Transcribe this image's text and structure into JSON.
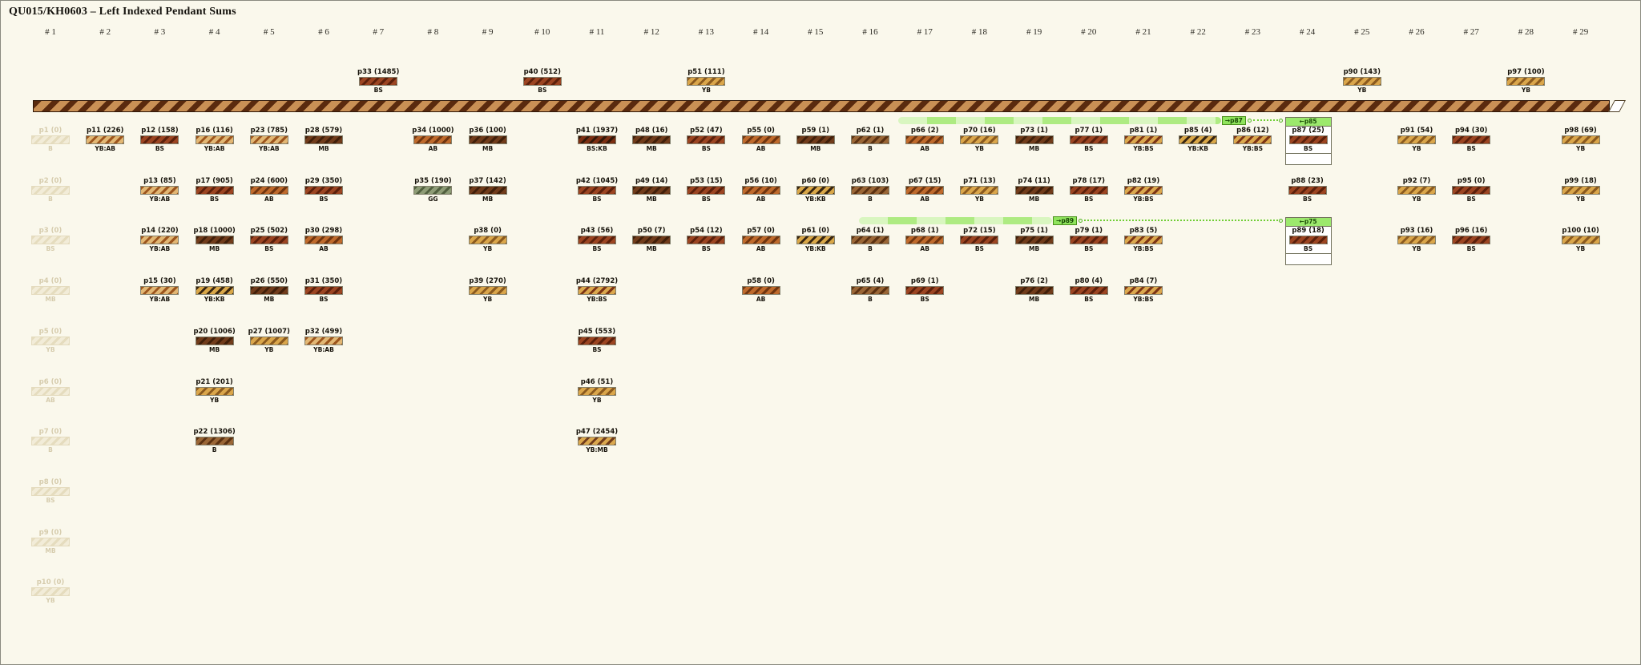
{
  "title": "QU015/KH0603 – Left Indexed Pendant Sums",
  "columns": [
    "# 1",
    "# 2",
    "# 3",
    "# 4",
    "# 5",
    "# 6",
    "# 7",
    "# 8",
    "# 9",
    "# 10",
    "# 11",
    "# 12",
    "# 13",
    "# 14",
    "# 15",
    "# 16",
    "# 17",
    "# 18",
    "# 19",
    "# 20",
    "# 21",
    "# 22",
    "# 23",
    "# 24",
    "# 25",
    "# 26",
    "# 27",
    "# 28",
    "# 29"
  ],
  "colors": {
    "background": "#faf8ec",
    "cord_light": "#c99055",
    "cord_dark": "#5a2a0e",
    "band_light": "#d9f6c0",
    "band_dark": "#aeeb82",
    "badge_green": "#8fe45c",
    "box_header_green": "#9ce96d",
    "dotted_green": "#6fce35",
    "ghost": [
      "#f2ecd8",
      "#e5dcbe"
    ],
    "codes": {
      "B": [
        "#9a6636",
        "#5b3111"
      ],
      "BS": [
        "#9c4522",
        "#5c200b"
      ],
      "MB": [
        "#713c1b",
        "#411f09"
      ],
      "AB": [
        "#bf6a2c",
        "#70350f"
      ],
      "YB": [
        "#daa64b",
        "#8b5a1e"
      ],
      "GG": [
        "#8e9c76",
        "#51603f"
      ],
      "YB:AB": [
        "#e2b774",
        "#9c551d"
      ],
      "YB:BS": [
        "#dba84e",
        "#7c3414"
      ],
      "YB:KB": [
        "#d9a748",
        "#382510"
      ],
      "YB:MB": [
        "#dba84e",
        "#713c1b"
      ],
      "BS:KB": [
        "#7c2f12",
        "#331708"
      ]
    }
  },
  "pendants": [
    {
      "id": "p33",
      "value": 1485,
      "col": 7,
      "row": 0,
      "code": "BS"
    },
    {
      "id": "p40",
      "value": 512,
      "col": 10,
      "row": 0,
      "code": "BS"
    },
    {
      "id": "p51",
      "value": 111,
      "col": 13,
      "row": 0,
      "code": "YB"
    },
    {
      "id": "p90",
      "value": 143,
      "col": 25,
      "row": 0,
      "code": "YB"
    },
    {
      "id": "p97",
      "value": 100,
      "col": 28,
      "row": 0,
      "code": "YB"
    },
    {
      "id": "p1",
      "value": 0,
      "col": 1,
      "row": 1,
      "code": "B",
      "ghost": true
    },
    {
      "id": "p2",
      "value": 0,
      "col": 1,
      "row": 2,
      "code": "B",
      "ghost": true
    },
    {
      "id": "p3",
      "value": 0,
      "col": 1,
      "row": 3,
      "code": "BS",
      "ghost": true
    },
    {
      "id": "p4",
      "value": 0,
      "col": 1,
      "row": 4,
      "code": "MB",
      "ghost": true
    },
    {
      "id": "p5",
      "value": 0,
      "col": 1,
      "row": 5,
      "code": "YB",
      "ghost": true
    },
    {
      "id": "p6",
      "value": 0,
      "col": 1,
      "row": 6,
      "code": "AB",
      "ghost": true
    },
    {
      "id": "p7",
      "value": 0,
      "col": 1,
      "row": 7,
      "code": "B",
      "ghost": true
    },
    {
      "id": "p8",
      "value": 0,
      "col": 1,
      "row": 8,
      "code": "BS",
      "ghost": true
    },
    {
      "id": "p9",
      "value": 0,
      "col": 1,
      "row": 9,
      "code": "MB",
      "ghost": true
    },
    {
      "id": "p10",
      "value": 0,
      "col": 1,
      "row": 10,
      "code": "YB",
      "ghost": true
    },
    {
      "id": "p11",
      "value": 226,
      "col": 2,
      "row": 1,
      "code": "YB:AB"
    },
    {
      "id": "p12",
      "value": 158,
      "col": 3,
      "row": 1,
      "code": "BS"
    },
    {
      "id": "p16",
      "value": 116,
      "col": 4,
      "row": 1,
      "code": "YB:AB"
    },
    {
      "id": "p23",
      "value": 785,
      "col": 5,
      "row": 1,
      "code": "YB:AB"
    },
    {
      "id": "p28",
      "value": 579,
      "col": 6,
      "row": 1,
      "code": "MB"
    },
    {
      "id": "p34",
      "value": 1000,
      "col": 8,
      "row": 1,
      "code": "AB"
    },
    {
      "id": "p36",
      "value": 100,
      "col": 9,
      "row": 1,
      "code": "MB"
    },
    {
      "id": "p41",
      "value": 1937,
      "col": 11,
      "row": 1,
      "code": "BS:KB"
    },
    {
      "id": "p48",
      "value": 16,
      "col": 12,
      "row": 1,
      "code": "MB"
    },
    {
      "id": "p52",
      "value": 47,
      "col": 13,
      "row": 1,
      "code": "BS"
    },
    {
      "id": "p55",
      "value": 0,
      "col": 14,
      "row": 1,
      "code": "AB"
    },
    {
      "id": "p59",
      "value": 1,
      "col": 15,
      "row": 1,
      "code": "MB"
    },
    {
      "id": "p62",
      "value": 1,
      "col": 16,
      "row": 1,
      "code": "B"
    },
    {
      "id": "p66",
      "value": 2,
      "col": 17,
      "row": 1,
      "code": "AB"
    },
    {
      "id": "p70",
      "value": 16,
      "col": 18,
      "row": 1,
      "code": "YB"
    },
    {
      "id": "p73",
      "value": 1,
      "col": 19,
      "row": 1,
      "code": "MB"
    },
    {
      "id": "p77",
      "value": 1,
      "col": 20,
      "row": 1,
      "code": "BS"
    },
    {
      "id": "p81",
      "value": 1,
      "col": 21,
      "row": 1,
      "code": "YB:BS"
    },
    {
      "id": "p85",
      "value": 4,
      "col": 22,
      "row": 1,
      "code": "YB:KB"
    },
    {
      "id": "p86",
      "value": 12,
      "col": 23,
      "row": 1,
      "code": "YB:BS"
    },
    {
      "id": "p87",
      "value": 25,
      "col": 24,
      "row": 1,
      "code": "BS",
      "boxed": true,
      "box_tag": "←p85"
    },
    {
      "id": "p91",
      "value": 54,
      "col": 26,
      "row": 1,
      "code": "YB"
    },
    {
      "id": "p94",
      "value": 30,
      "col": 27,
      "row": 1,
      "code": "BS"
    },
    {
      "id": "p98",
      "value": 69,
      "col": 29,
      "row": 1,
      "code": "YB"
    },
    {
      "id": "p13",
      "value": 85,
      "col": 3,
      "row": 2,
      "code": "YB:AB"
    },
    {
      "id": "p17",
      "value": 905,
      "col": 4,
      "row": 2,
      "code": "BS"
    },
    {
      "id": "p24",
      "value": 600,
      "col": 5,
      "row": 2,
      "code": "AB"
    },
    {
      "id": "p29",
      "value": 350,
      "col": 6,
      "row": 2,
      "code": "BS"
    },
    {
      "id": "p35",
      "value": 190,
      "col": 8,
      "row": 2,
      "code": "GG"
    },
    {
      "id": "p37",
      "value": 142,
      "col": 9,
      "row": 2,
      "code": "MB"
    },
    {
      "id": "p42",
      "value": 1045,
      "col": 11,
      "row": 2,
      "code": "BS"
    },
    {
      "id": "p49",
      "value": 14,
      "col": 12,
      "row": 2,
      "code": "MB"
    },
    {
      "id": "p53",
      "value": 15,
      "col": 13,
      "row": 2,
      "code": "BS"
    },
    {
      "id": "p56",
      "value": 10,
      "col": 14,
      "row": 2,
      "code": "AB"
    },
    {
      "id": "p60",
      "value": 0,
      "col": 15,
      "row": 2,
      "code": "YB:KB"
    },
    {
      "id": "p63",
      "value": 103,
      "col": 16,
      "row": 2,
      "code": "B"
    },
    {
      "id": "p67",
      "value": 15,
      "col": 17,
      "row": 2,
      "code": "AB"
    },
    {
      "id": "p71",
      "value": 13,
      "col": 18,
      "row": 2,
      "code": "YB"
    },
    {
      "id": "p74",
      "value": 11,
      "col": 19,
      "row": 2,
      "code": "MB"
    },
    {
      "id": "p78",
      "value": 17,
      "col": 20,
      "row": 2,
      "code": "BS"
    },
    {
      "id": "p82",
      "value": 19,
      "col": 21,
      "row": 2,
      "code": "YB:BS"
    },
    {
      "id": "p88",
      "value": 23,
      "col": 24,
      "row": 2,
      "code": "BS"
    },
    {
      "id": "p92",
      "value": 7,
      "col": 26,
      "row": 2,
      "code": "YB"
    },
    {
      "id": "p95",
      "value": 0,
      "col": 27,
      "row": 2,
      "code": "BS"
    },
    {
      "id": "p99",
      "value": 18,
      "col": 29,
      "row": 2,
      "code": "YB"
    },
    {
      "id": "p14",
      "value": 220,
      "col": 3,
      "row": 3,
      "code": "YB:AB"
    },
    {
      "id": "p18",
      "value": 1000,
      "col": 4,
      "row": 3,
      "code": "MB"
    },
    {
      "id": "p25",
      "value": 502,
      "col": 5,
      "row": 3,
      "code": "BS"
    },
    {
      "id": "p30",
      "value": 298,
      "col": 6,
      "row": 3,
      "code": "AB"
    },
    {
      "id": "p38",
      "value": 0,
      "col": 9,
      "row": 3,
      "code": "YB"
    },
    {
      "id": "p43",
      "value": 56,
      "col": 11,
      "row": 3,
      "code": "BS"
    },
    {
      "id": "p50",
      "value": 7,
      "col": 12,
      "row": 3,
      "code": "MB"
    },
    {
      "id": "p54",
      "value": 12,
      "col": 13,
      "row": 3,
      "code": "BS"
    },
    {
      "id": "p57",
      "value": 0,
      "col": 14,
      "row": 3,
      "code": "AB"
    },
    {
      "id": "p61",
      "value": 0,
      "col": 15,
      "row": 3,
      "code": "YB:KB"
    },
    {
      "id": "p64",
      "value": 1,
      "col": 16,
      "row": 3,
      "code": "B"
    },
    {
      "id": "p68",
      "value": 1,
      "col": 17,
      "row": 3,
      "code": "AB"
    },
    {
      "id": "p72",
      "value": 15,
      "col": 18,
      "row": 3,
      "code": "BS"
    },
    {
      "id": "p75",
      "value": 1,
      "col": 19,
      "row": 3,
      "code": "MB"
    },
    {
      "id": "p79",
      "value": 1,
      "col": 20,
      "row": 3,
      "code": "BS"
    },
    {
      "id": "p83",
      "value": 5,
      "col": 21,
      "row": 3,
      "code": "YB:BS"
    },
    {
      "id": "p89",
      "value": 18,
      "col": 24,
      "row": 3,
      "code": "BS",
      "boxed": true,
      "box_tag": "←p75"
    },
    {
      "id": "p93",
      "value": 16,
      "col": 26,
      "row": 3,
      "code": "YB"
    },
    {
      "id": "p96",
      "value": 16,
      "col": 27,
      "row": 3,
      "code": "BS"
    },
    {
      "id": "p100",
      "value": 10,
      "col": 29,
      "row": 3,
      "code": "YB"
    },
    {
      "id": "p15",
      "value": 30,
      "col": 3,
      "row": 4,
      "code": "YB:AB"
    },
    {
      "id": "p19",
      "value": 458,
      "col": 4,
      "row": 4,
      "code": "YB:KB"
    },
    {
      "id": "p26",
      "value": 550,
      "col": 5,
      "row": 4,
      "code": "MB"
    },
    {
      "id": "p31",
      "value": 350,
      "col": 6,
      "row": 4,
      "code": "BS"
    },
    {
      "id": "p39",
      "value": 270,
      "col": 9,
      "row": 4,
      "code": "YB"
    },
    {
      "id": "p44",
      "value": 2792,
      "col": 11,
      "row": 4,
      "code": "YB:BS"
    },
    {
      "id": "p58",
      "value": 0,
      "col": 14,
      "row": 4,
      "code": "AB"
    },
    {
      "id": "p65",
      "value": 4,
      "col": 16,
      "row": 4,
      "code": "B"
    },
    {
      "id": "p69",
      "value": 1,
      "col": 17,
      "row": 4,
      "code": "BS"
    },
    {
      "id": "p76",
      "value": 2,
      "col": 19,
      "row": 4,
      "code": "MB"
    },
    {
      "id": "p80",
      "value": 4,
      "col": 20,
      "row": 4,
      "code": "BS"
    },
    {
      "id": "p84",
      "value": 7,
      "col": 21,
      "row": 4,
      "code": "YB:BS"
    },
    {
      "id": "p20",
      "value": 1006,
      "col": 4,
      "row": 5,
      "code": "MB"
    },
    {
      "id": "p27",
      "value": 1007,
      "col": 5,
      "row": 5,
      "code": "YB"
    },
    {
      "id": "p32",
      "value": 499,
      "col": 6,
      "row": 5,
      "code": "YB:AB"
    },
    {
      "id": "p45",
      "value": 553,
      "col": 11,
      "row": 5,
      "code": "BS"
    },
    {
      "id": "p21",
      "value": 201,
      "col": 4,
      "row": 6,
      "code": "YB"
    },
    {
      "id": "p46",
      "value": 51,
      "col": 11,
      "row": 6,
      "code": "YB"
    },
    {
      "id": "p22",
      "value": 1306,
      "col": 4,
      "row": 7,
      "code": "B"
    },
    {
      "id": "p47",
      "value": 2454,
      "col": 11,
      "row": 7,
      "code": "YB:MB"
    }
  ],
  "sum_bands": [
    {
      "row": 1,
      "from_col": 16.51,
      "to_col": 22.42,
      "badge": "→p87",
      "target_col": 24
    },
    {
      "row": 3,
      "from_col": 15.79,
      "to_col": 19.33,
      "badge": "→p89",
      "target_col": 24
    }
  ]
}
